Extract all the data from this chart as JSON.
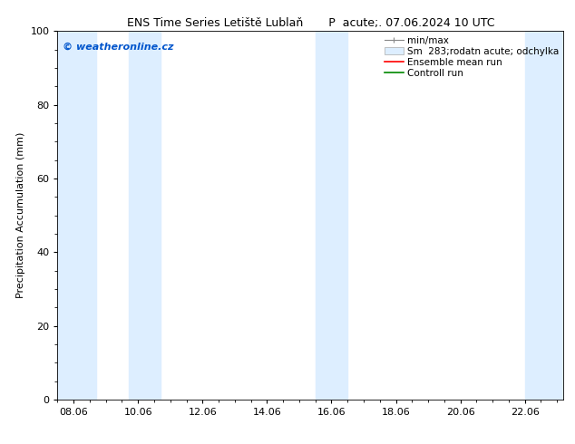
{
  "title": "ENS Time Series Letiště Lublaň       P  acute;. 07.06.2024 10 UTC",
  "ylabel": "Precipitation Accumulation (mm)",
  "ylim": [
    0,
    100
  ],
  "yticks": [
    0,
    20,
    40,
    60,
    80,
    100
  ],
  "background_color": "#ffffff",
  "plot_bg_color": "#ffffff",
  "watermark": "© weatheronline.cz",
  "watermark_color": "#0055cc",
  "shaded_bands_x": [
    [
      7.5,
      8.7
    ],
    [
      9.7,
      10.7
    ],
    [
      15.5,
      16.5
    ],
    [
      22.0,
      23.2
    ]
  ],
  "shaded_color": "#ddeeff",
  "x_tick_labels": [
    "08.06",
    "10.06",
    "12.06",
    "14.06",
    "16.06",
    "18.06",
    "20.06",
    "22.06"
  ],
  "x_tick_positions": [
    8.0,
    10.0,
    12.0,
    14.0,
    16.0,
    18.0,
    20.0,
    22.0
  ],
  "xlim": [
    7.5,
    23.2
  ],
  "title_fontsize": 9,
  "tick_fontsize": 8,
  "legend_fontsize": 7.5,
  "ylabel_fontsize": 8,
  "watermark_fontsize": 8
}
